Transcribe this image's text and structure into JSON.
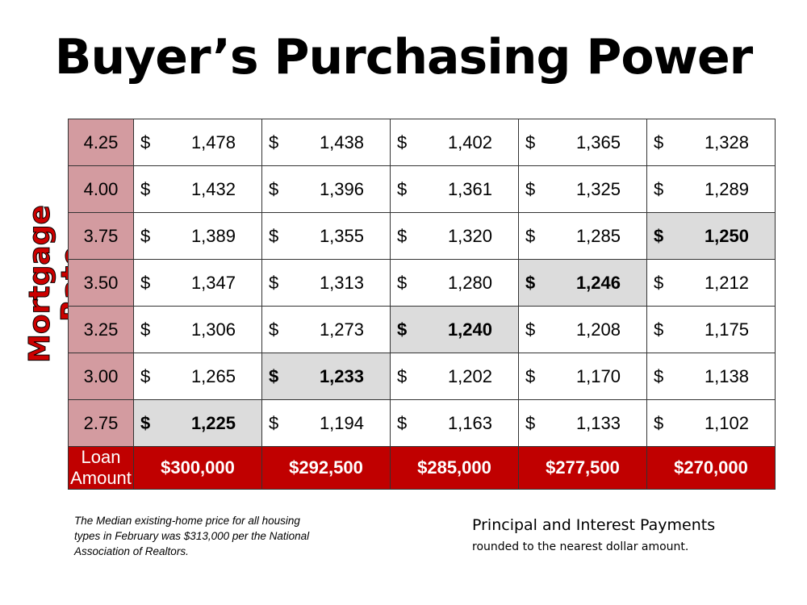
{
  "title": "Buyer’s Purchasing Power",
  "side_label": "Mortgage Rate",
  "currency_symbol": "$",
  "rows": [
    {
      "rate": "4.25",
      "payments": [
        "1,478",
        "1,438",
        "1,402",
        "1,365",
        "1,328"
      ]
    },
    {
      "rate": "4.00",
      "payments": [
        "1,432",
        "1,396",
        "1,361",
        "1,325",
        "1,289"
      ]
    },
    {
      "rate": "3.75",
      "payments": [
        "1,389",
        "1,355",
        "1,320",
        "1,285",
        "1,250"
      ]
    },
    {
      "rate": "3.50",
      "payments": [
        "1,347",
        "1,313",
        "1,280",
        "1,246",
        "1,212"
      ]
    },
    {
      "rate": "3.25",
      "payments": [
        "1,306",
        "1,273",
        "1,240",
        "1,208",
        "1,175"
      ]
    },
    {
      "rate": "3.00",
      "payments": [
        "1,265",
        "1,233",
        "1,202",
        "1,170",
        "1,138"
      ]
    },
    {
      "rate": "2.75",
      "payments": [
        "1,225",
        "1,194",
        "1,163",
        "1,133",
        "1,102"
      ]
    }
  ],
  "highlighted_column_by_row": [
    null,
    null,
    4,
    3,
    2,
    1,
    0
  ],
  "footer": {
    "label_line1": "Loan",
    "label_line2": "Amount",
    "amounts": [
      "$300,000",
      "$292,500",
      "$285,000",
      "$277,500",
      "$270,000"
    ]
  },
  "note": "The Median existing-home price for all housing types in February was $313,000 per the National Association of Realtors.",
  "pi_title": "Principal and Interest Payments",
  "pi_subtitle": "rounded to the nearest dollar amount.",
  "colors": {
    "rate_cell": "#d39ba0",
    "footer": "#c00000",
    "highlight": "#dcdcdc",
    "side_label": "#cc0000"
  }
}
